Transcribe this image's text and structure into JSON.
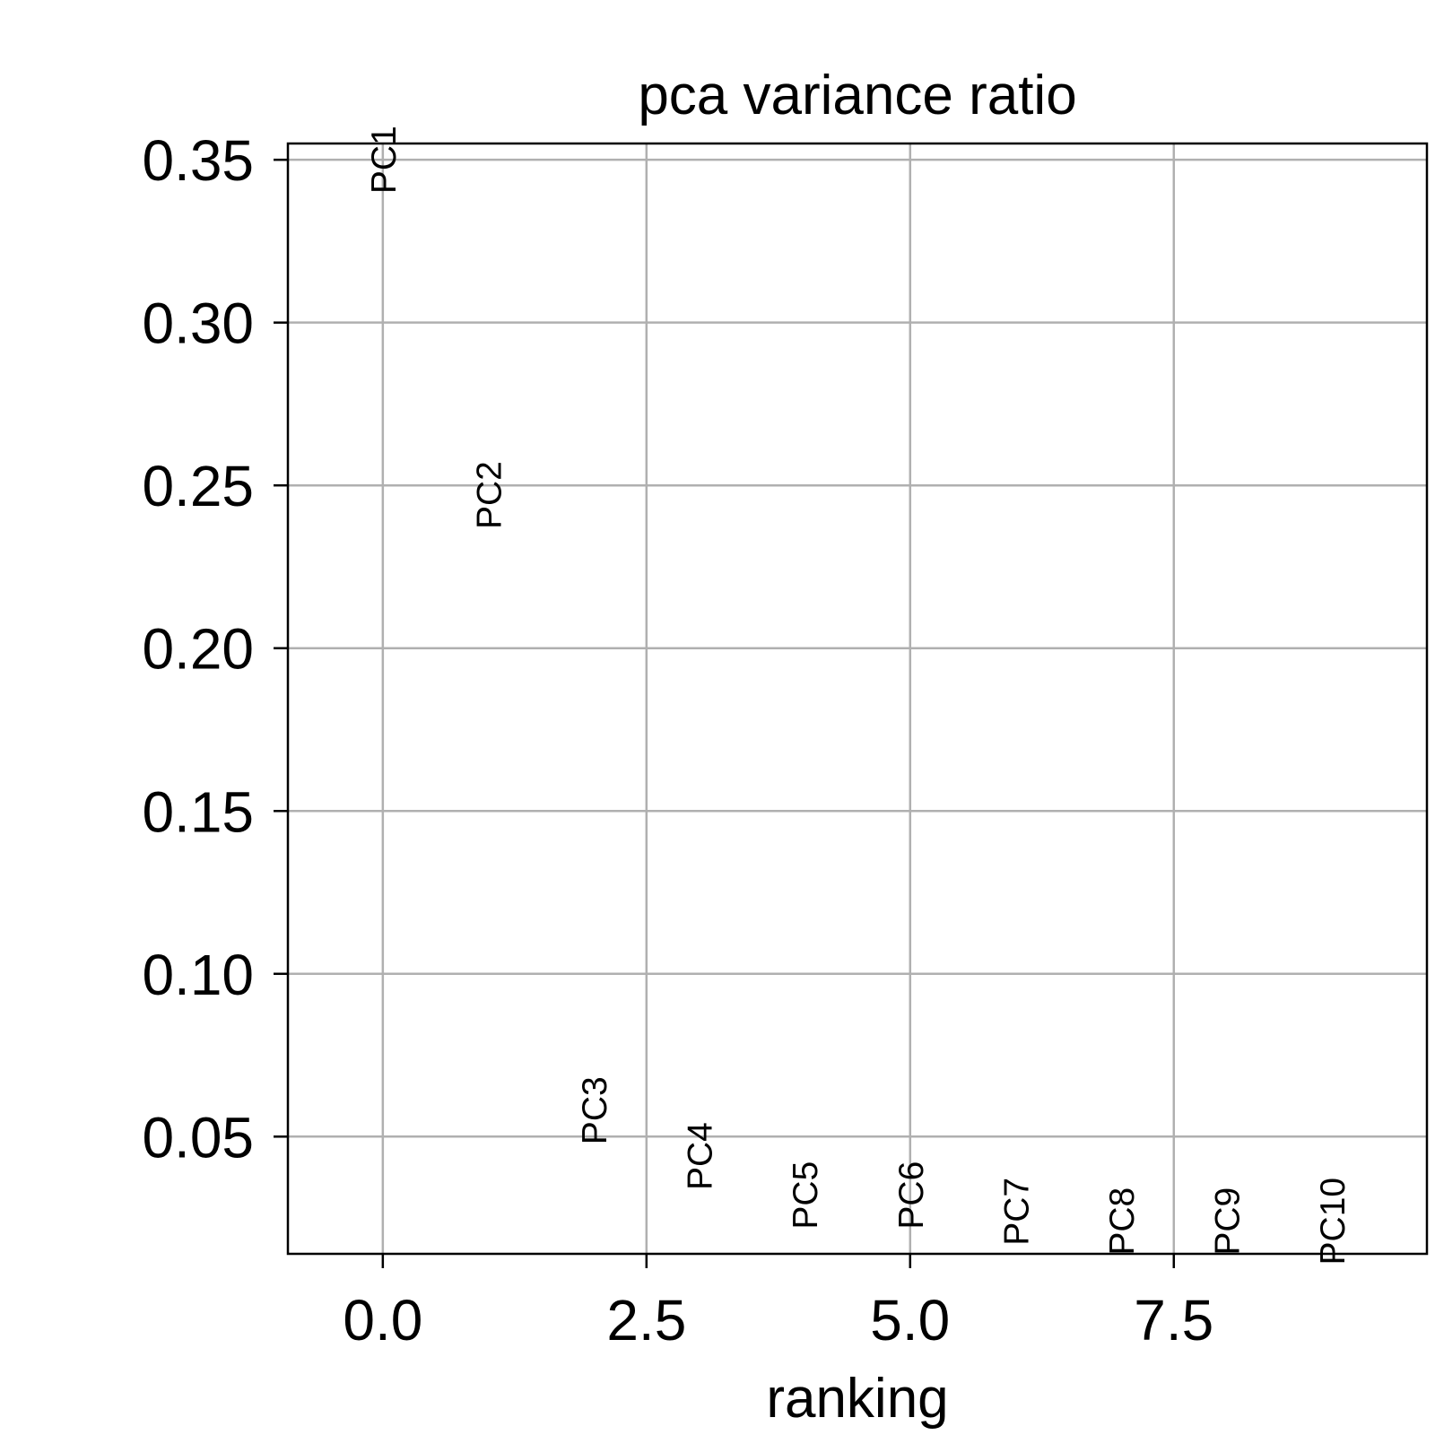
{
  "chart_data": {
    "type": "scatter",
    "title": "pca variance ratio",
    "xlabel": "ranking",
    "ylabel": "",
    "xlim": [
      -0.9,
      9.9
    ],
    "ylim": [
      0.014,
      0.355
    ],
    "xticks": [
      0.0,
      2.5,
      5.0,
      7.5
    ],
    "xtick_labels": [
      "0.0",
      "2.5",
      "5.0",
      "7.5"
    ],
    "yticks": [
      0.05,
      0.1,
      0.15,
      0.2,
      0.25,
      0.3,
      0.35
    ],
    "ytick_labels": [
      "0.05",
      "0.10",
      "0.15",
      "0.20",
      "0.25",
      "0.30",
      "0.35"
    ],
    "grid": true,
    "points": [
      {
        "label": "PC1",
        "x": 0,
        "y": 0.35
      },
      {
        "label": "PC2",
        "x": 1,
        "y": 0.247
      },
      {
        "label": "PC3",
        "x": 2,
        "y": 0.058
      },
      {
        "label": "PC4",
        "x": 3,
        "y": 0.044
      },
      {
        "label": "PC5",
        "x": 4,
        "y": 0.032
      },
      {
        "label": "PC6",
        "x": 5,
        "y": 0.032
      },
      {
        "label": "PC7",
        "x": 6,
        "y": 0.027
      },
      {
        "label": "PC8",
        "x": 7,
        "y": 0.024
      },
      {
        "label": "PC9",
        "x": 8,
        "y": 0.024
      },
      {
        "label": "PC10",
        "x": 9,
        "y": 0.024
      }
    ]
  }
}
